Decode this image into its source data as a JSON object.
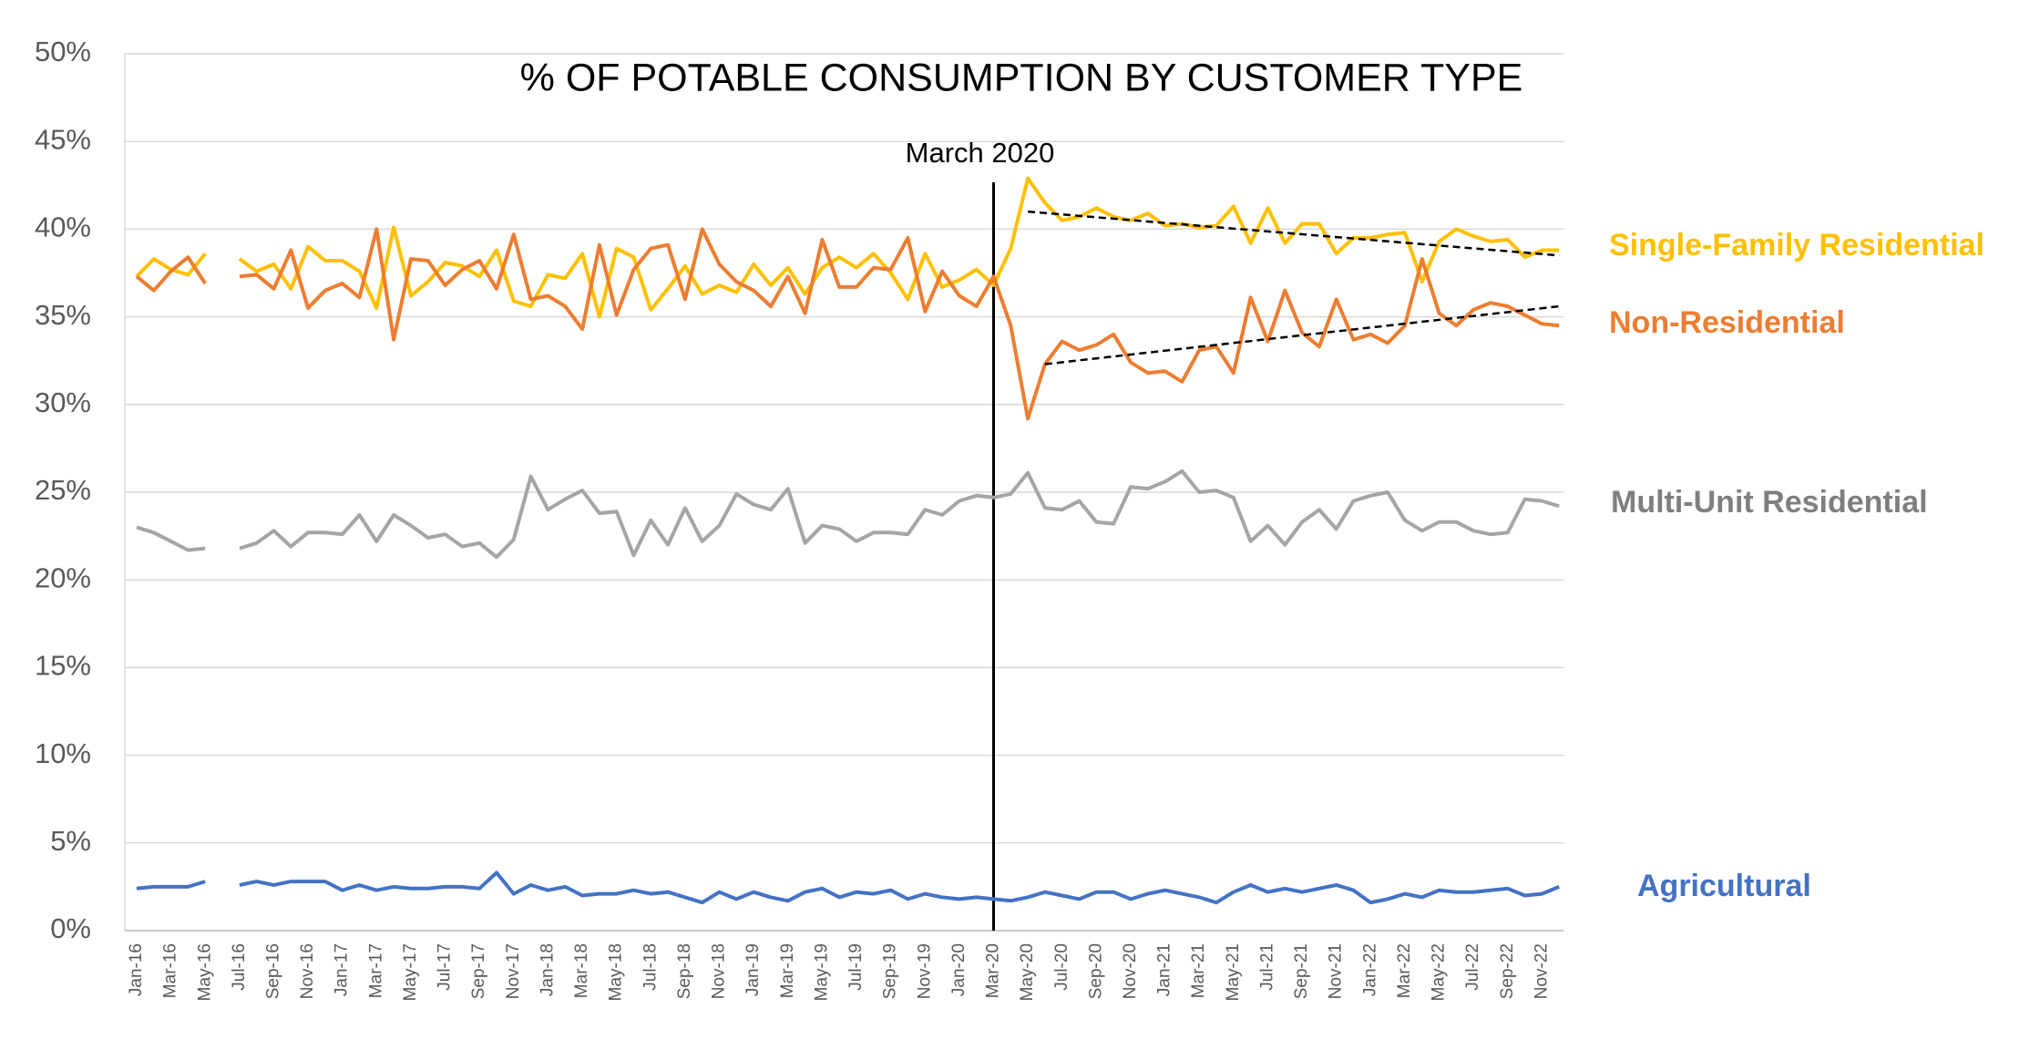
{
  "chart_data": {
    "type": "line",
    "title": "% OF POTABLE CONSUMPTION BY CUSTOMER TYPE",
    "categories": [
      "Jan-16",
      null,
      "Mar-16",
      null,
      "May-16",
      null,
      "Jul-16",
      null,
      "Sep-16",
      null,
      "Nov-16",
      null,
      "Jan-17",
      null,
      "Mar-17",
      null,
      "May-17",
      null,
      "Jul-17",
      null,
      "Sep-17",
      null,
      "Nov-17",
      null,
      "Jan-18",
      null,
      "Mar-18",
      null,
      "May-18",
      null,
      "Jul-18",
      null,
      "Sep-18",
      null,
      "Nov-18",
      null,
      "Jan-19",
      null,
      "Mar-19",
      null,
      "May-19",
      null,
      "Jul-19",
      null,
      "Sep-19",
      null,
      "Nov-19",
      null,
      "Jan-20",
      null,
      "Mar-20",
      null,
      "May-20",
      null,
      "Jul-20",
      null,
      "Sep-20",
      null,
      "Nov-20",
      null,
      "Jan-21",
      null,
      "Mar-21",
      null,
      "May-21",
      null,
      "Jul-21",
      null,
      "Sep-21",
      null,
      "Nov-21",
      null,
      "Jan-22",
      null,
      "Mar-22",
      null,
      "May-22",
      null,
      "Jul-22",
      null,
      "Sep-22",
      null,
      "Nov-22",
      null
    ],
    "series": [
      {
        "name": "Single-Family Residential",
        "color": "#FFC000",
        "values": [
          37.3,
          38.3,
          37.7,
          37.4,
          38.6,
          null,
          38.3,
          37.6,
          38.0,
          36.6,
          39.0,
          38.2,
          38.2,
          37.6,
          35.5,
          40.1,
          36.2,
          37.0,
          38.1,
          37.9,
          37.3,
          38.8,
          35.9,
          35.6,
          37.4,
          37.2,
          38.6,
          35.0,
          38.9,
          38.4,
          35.4,
          36.6,
          37.9,
          36.3,
          36.8,
          36.4,
          38.0,
          36.8,
          37.8,
          36.3,
          37.8,
          38.4,
          37.8,
          38.6,
          37.5,
          36.0,
          38.6,
          36.7,
          37.1,
          37.7,
          36.8,
          38.9,
          42.9,
          41.5,
          40.5,
          40.7,
          41.2,
          40.7,
          40.5,
          40.9,
          40.2,
          40.3,
          40.1,
          40.2,
          41.3,
          39.2,
          41.2,
          39.2,
          40.3,
          40.3,
          38.6,
          39.5,
          39.5,
          39.7,
          39.8,
          37.0,
          39.3,
          40.0,
          39.6,
          39.3,
          39.4,
          38.4,
          38.8,
          38.8
        ]
      },
      {
        "name": "Non-Residential",
        "color": "#ED7D31",
        "values": [
          37.3,
          36.5,
          37.6,
          38.4,
          36.9,
          null,
          37.3,
          37.4,
          36.6,
          38.8,
          35.5,
          36.5,
          36.9,
          36.1,
          40.0,
          33.7,
          38.3,
          38.2,
          36.8,
          37.7,
          38.2,
          36.6,
          39.7,
          36.0,
          36.2,
          35.6,
          34.3,
          39.1,
          35.1,
          37.7,
          38.9,
          39.1,
          36.0,
          40.0,
          38.0,
          37.0,
          36.5,
          35.6,
          37.3,
          35.2,
          39.4,
          36.7,
          36.7,
          37.8,
          37.7,
          39.5,
          35.3,
          37.6,
          36.2,
          35.6,
          37.3,
          34.5,
          29.2,
          32.3,
          33.6,
          33.1,
          33.4,
          34.0,
          32.4,
          31.8,
          31.9,
          31.3,
          33.1,
          33.3,
          31.8,
          36.1,
          33.6,
          36.5,
          34.1,
          33.3,
          36.0,
          33.7,
          34.0,
          33.5,
          34.5,
          38.3,
          35.2,
          34.5,
          35.4,
          35.8,
          35.6,
          35.1,
          34.6,
          34.5
        ]
      },
      {
        "name": "Multi-Unit Residential",
        "color": "#A5A5A5",
        "values": [
          23.0,
          22.7,
          22.2,
          21.7,
          21.8,
          null,
          21.8,
          22.1,
          22.8,
          21.9,
          22.7,
          22.7,
          22.6,
          23.7,
          22.2,
          23.7,
          23.1,
          22.4,
          22.6,
          21.9,
          22.1,
          21.3,
          22.3,
          25.9,
          24.0,
          24.6,
          25.1,
          23.8,
          23.9,
          21.4,
          23.4,
          22.0,
          24.1,
          22.2,
          23.1,
          24.9,
          24.3,
          24.0,
          25.2,
          22.1,
          23.1,
          22.9,
          22.2,
          22.7,
          22.7,
          22.6,
          24.0,
          23.7,
          24.5,
          24.8,
          24.7,
          24.9,
          26.1,
          24.1,
          24.0,
          24.5,
          23.3,
          23.2,
          25.3,
          25.2,
          25.6,
          26.2,
          25.0,
          25.1,
          24.7,
          22.2,
          23.1,
          22.0,
          23.3,
          24.0,
          22.9,
          24.5,
          24.8,
          25.0,
          23.4,
          22.8,
          23.3,
          23.3,
          22.8,
          22.6,
          22.7,
          24.6,
          24.5,
          24.2
        ]
      },
      {
        "name": "Agricultural",
        "color": "#4472C4",
        "values": [
          2.4,
          2.5,
          2.5,
          2.5,
          2.8,
          null,
          2.6,
          2.8,
          2.6,
          2.8,
          2.8,
          2.8,
          2.3,
          2.6,
          2.3,
          2.5,
          2.4,
          2.4,
          2.5,
          2.5,
          2.4,
          3.3,
          2.1,
          2.6,
          2.3,
          2.5,
          2.0,
          2.1,
          2.1,
          2.3,
          2.1,
          2.2,
          1.9,
          1.6,
          2.2,
          1.8,
          2.2,
          1.9,
          1.7,
          2.2,
          2.4,
          1.9,
          2.2,
          2.1,
          2.3,
          1.8,
          2.1,
          1.9,
          1.8,
          1.9,
          1.8,
          1.7,
          1.9,
          2.2,
          2.0,
          1.8,
          2.2,
          2.2,
          1.8,
          2.1,
          2.3,
          2.1,
          1.9,
          1.6,
          2.2,
          2.6,
          2.2,
          2.4,
          2.2,
          2.4,
          2.6,
          2.3,
          1.6,
          1.8,
          2.1,
          1.9,
          2.3,
          2.2,
          2.2,
          2.3,
          2.4,
          2.0,
          2.1,
          2.5
        ]
      }
    ],
    "trendlines": [
      {
        "color": "#000000",
        "values": [
          41.0,
          38.5
        ]
      },
      {
        "color": "#000000",
        "values": [
          32.3,
          35.6
        ]
      }
    ],
    "annotation": {
      "text": "March 2020",
      "at": "Mar-20"
    },
    "ylim": [
      0,
      50
    ],
    "yticks": [
      {
        "value": 0,
        "label": "0%"
      },
      {
        "value": 5,
        "label": "5%"
      },
      {
        "value": 10,
        "label": "10%"
      },
      {
        "value": 15,
        "label": "15%"
      },
      {
        "value": 20,
        "label": "20%"
      },
      {
        "value": 25,
        "label": "25%"
      },
      {
        "value": 30,
        "label": "30%"
      },
      {
        "value": 35,
        "label": "35%"
      },
      {
        "value": 40,
        "label": "40%"
      },
      {
        "value": 45,
        "label": "45%"
      },
      {
        "value": 50,
        "label": "50%"
      }
    ],
    "grid": true
  }
}
